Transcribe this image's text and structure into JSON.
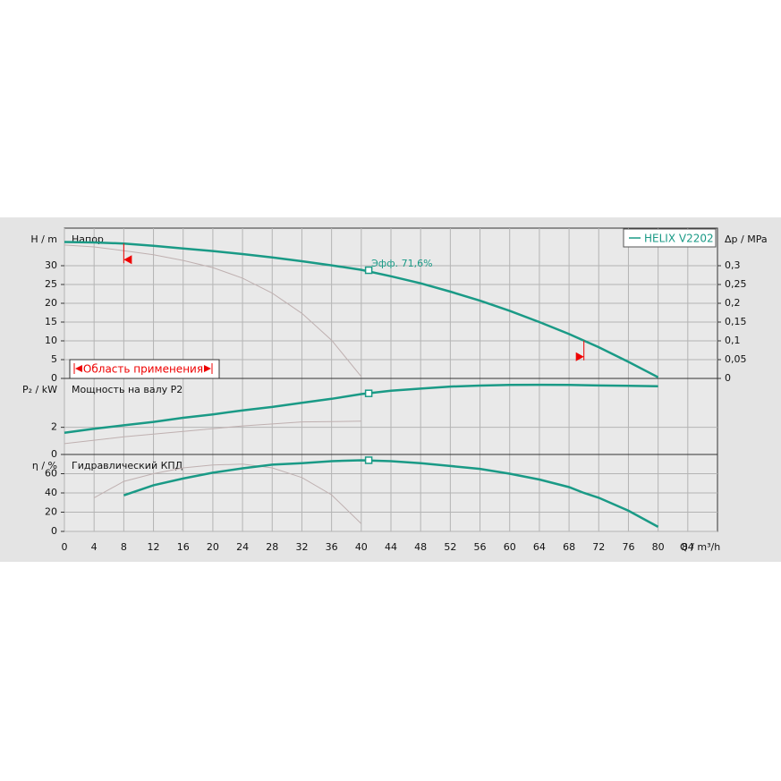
{
  "chart_data": [
    {
      "type": "line",
      "title": "Напор",
      "ylabel": "H / m",
      "y2label": "Δp / MPa",
      "xlim": [
        0,
        88
      ],
      "ylim": [
        0,
        40
      ],
      "yticks": [
        0,
        5,
        10,
        15,
        20,
        25,
        30
      ],
      "y2lim": [
        0,
        0.4
      ],
      "y2ticks": [
        0,
        {
          "value": 0.05,
          "label": "0,05"
        },
        {
          "value": 0.1,
          "label": "0,1"
        },
        {
          "value": 0.15,
          "label": "0,15"
        },
        {
          "value": 0.2,
          "label": "0,2"
        },
        {
          "value": 0.25,
          "label": "0,25"
        },
        {
          "value": 0.3,
          "label": "0,3"
        }
      ],
      "x": [
        0,
        4,
        8,
        12,
        16,
        20,
        24,
        28,
        32,
        36,
        40,
        44,
        48,
        52,
        56,
        60,
        64,
        68,
        72,
        76,
        80
      ],
      "series": [
        {
          "name": "HELIX V2202",
          "color": "#1a9a86",
          "values": [
            36.3,
            36.2,
            35.9,
            35.3,
            34.6,
            33.9,
            33.1,
            32.2,
            31.2,
            30.1,
            28.9,
            27.2,
            25.3,
            23.1,
            20.7,
            18.0,
            15.0,
            11.8,
            8.3,
            4.4,
            0.3
          ]
        }
      ],
      "reference": {
        "color": "#bfb0b0",
        "x": [
          0,
          4,
          8,
          12,
          16,
          20,
          24,
          28,
          32,
          36,
          40
        ],
        "values": [
          35.5,
          35,
          34,
          32.9,
          31.4,
          29.5,
          26.7,
          22.7,
          17.3,
          10.2,
          0.5
        ]
      },
      "duty_point": {
        "x": 41,
        "y": 28.8
      },
      "annotation": "Эфф.  71,6%",
      "application_range": {
        "label": "Область применения",
        "x": [
          8,
          70
        ]
      },
      "legend": "upper right"
    },
    {
      "type": "line",
      "title": "Мощность на валу P2",
      "ylabel": "P₂ / kW",
      "xlim": [
        0,
        88
      ],
      "ylim": [
        0,
        5.6
      ],
      "yticks": [
        0,
        2
      ],
      "x": [
        0,
        4,
        8,
        12,
        16,
        20,
        24,
        28,
        32,
        36,
        40,
        44,
        48,
        52,
        56,
        60,
        64,
        68,
        72,
        76,
        80
      ],
      "series": [
        {
          "color": "#1a9a86",
          "values": [
            1.6,
            1.9,
            2.15,
            2.4,
            2.7,
            2.95,
            3.25,
            3.5,
            3.8,
            4.1,
            4.45,
            4.7,
            4.85,
            5.0,
            5.07,
            5.12,
            5.13,
            5.12,
            5.08,
            5.05,
            5.03
          ]
        }
      ],
      "reference": {
        "color": "#bfb0b0",
        "x": [
          0,
          8,
          16,
          24,
          32,
          40
        ],
        "values": [
          0.8,
          1.3,
          1.7,
          2.1,
          2.4,
          2.45
        ]
      },
      "duty_point": {
        "x": 41,
        "y": 4.5
      }
    },
    {
      "type": "line",
      "title": "Гидравлический КПД",
      "ylabel": "η / %",
      "xlabel": "Q / m³/h",
      "xlim": [
        0,
        88
      ],
      "ylim": [
        0,
        80
      ],
      "yticks": [
        0,
        20,
        40,
        60
      ],
      "xticks": [
        0,
        4,
        8,
        12,
        16,
        20,
        24,
        28,
        32,
        36,
        40,
        44,
        48,
        52,
        56,
        60,
        64,
        68,
        72,
        76,
        80,
        84
      ],
      "x": [
        8,
        12,
        16,
        20,
        24,
        28,
        32,
        36,
        40,
        44,
        48,
        52,
        56,
        60,
        64,
        68,
        70,
        72,
        76,
        80
      ],
      "series": [
        {
          "color": "#1a9a86",
          "values": [
            37.5,
            48,
            55,
            61,
            65.6,
            69.4,
            71,
            73,
            74,
            73,
            71,
            68,
            65,
            60,
            54,
            46,
            40,
            35,
            21.5,
            4.7
          ]
        }
      ],
      "reference": {
        "color": "#bfb0b0",
        "x": [
          4,
          8,
          12,
          16,
          20,
          24,
          28,
          32,
          36,
          40
        ],
        "values": [
          35,
          52,
          60,
          66,
          69,
          70,
          66,
          56,
          38,
          8
        ]
      },
      "duty_point": {
        "x": 41,
        "y": 74
      }
    }
  ]
}
